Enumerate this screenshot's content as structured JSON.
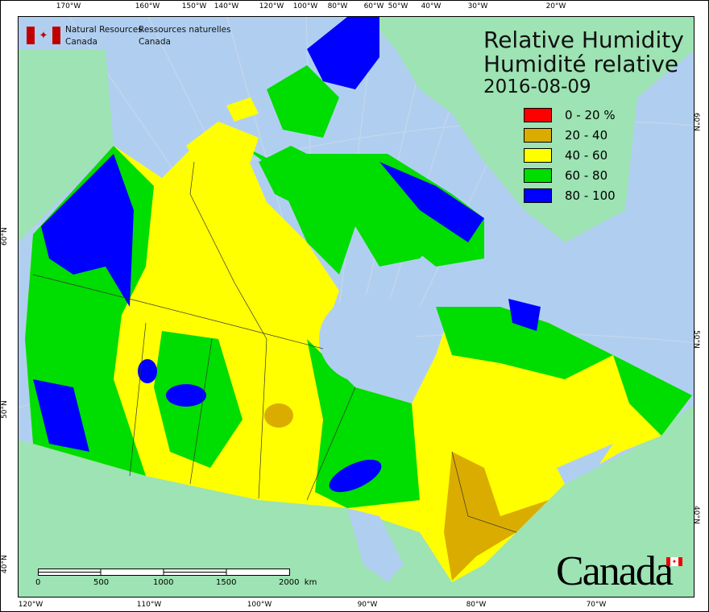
{
  "title": {
    "line1": "Relative Humidity",
    "line2": "Humidité relative",
    "date": "2016-08-09"
  },
  "agency": {
    "en_line1": "Natural Resources",
    "en_line2": "Canada",
    "fr_line1": "Ressources naturelles",
    "fr_line2": "Canada"
  },
  "legend": [
    {
      "label": "0 - 20 %",
      "color": "#ff0000"
    },
    {
      "label": "20 - 40",
      "color": "#dbac00"
    },
    {
      "label": "40 - 60",
      "color": "#ffff00"
    },
    {
      "label": "60 - 80",
      "color": "#00dd00"
    },
    {
      "label": "80 - 100",
      "color": "#0000ff"
    }
  ],
  "axis": {
    "top": [
      "170°W",
      "160°W",
      "150°W",
      "140°W",
      "120°W",
      "100°W",
      "80°W",
      "60°W",
      "50°W",
      "40°W",
      "30°W",
      "20°W"
    ],
    "bottom": [
      "120°W",
      "110°W",
      "100°W",
      "90°W",
      "80°W",
      "70°W"
    ],
    "left": [
      "60°N",
      "50°N",
      "40°N"
    ],
    "right": [
      "60°N",
      "50°N",
      "40°N"
    ]
  },
  "scale_bar": {
    "labels": [
      "0",
      "500",
      "1000",
      "1500",
      "2000  km"
    ]
  },
  "wordmark": "Canada",
  "colors": {
    "water": "#b0cff0",
    "foreign_land": "#9de3b3"
  }
}
